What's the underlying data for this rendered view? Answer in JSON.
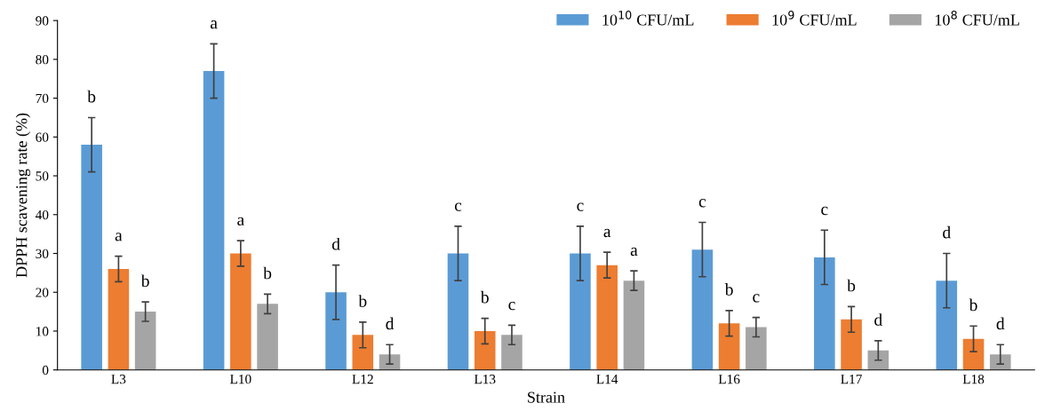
{
  "chart_data": {
    "type": "bar",
    "xlabel": "Strain",
    "ylabel": "DPPH scavening rate (%)",
    "categories": [
      "L3",
      "L10",
      "L12",
      "L13",
      "L14",
      "L16",
      "L17",
      "L18"
    ],
    "series": [
      {
        "name": "10$^{10}$ CFU/mL",
        "color": "#5b9bd5",
        "values": [
          58,
          77,
          20,
          30,
          30,
          31,
          29,
          23
        ],
        "errors": [
          7,
          7,
          7,
          7,
          7,
          7,
          7,
          7
        ],
        "value_labels": [
          "b",
          "a",
          "d",
          "c",
          "c",
          "c",
          "c",
          "d"
        ]
      },
      {
        "name": "10$^{9}$ CFU/mL",
        "color": "#ed7d31",
        "values": [
          26,
          30,
          9,
          10,
          27,
          12,
          13,
          8
        ],
        "errors": [
          3.3,
          3.3,
          3.3,
          3.3,
          3.3,
          3.3,
          3.3,
          3.3
        ],
        "value_labels": [
          "a",
          "a",
          "b",
          "b",
          "a",
          "b",
          "b",
          "b"
        ]
      },
      {
        "name": "10$^{8}$ CFU/mL",
        "color": "#a5a5a5",
        "values": [
          15,
          17,
          4,
          9,
          23,
          11,
          5,
          4
        ],
        "errors": [
          2.5,
          2.5,
          2.5,
          2.5,
          2.5,
          2.5,
          2.5,
          2.5
        ],
        "value_labels": [
          "b",
          "b",
          "d",
          "c",
          "a",
          "c",
          "d",
          "d"
        ]
      }
    ],
    "ylim": [
      0,
      90
    ],
    "yticks": [
      0,
      10,
      20,
      30,
      40,
      50,
      60,
      70,
      80,
      90
    ],
    "grid": false,
    "legend": "top right"
  }
}
